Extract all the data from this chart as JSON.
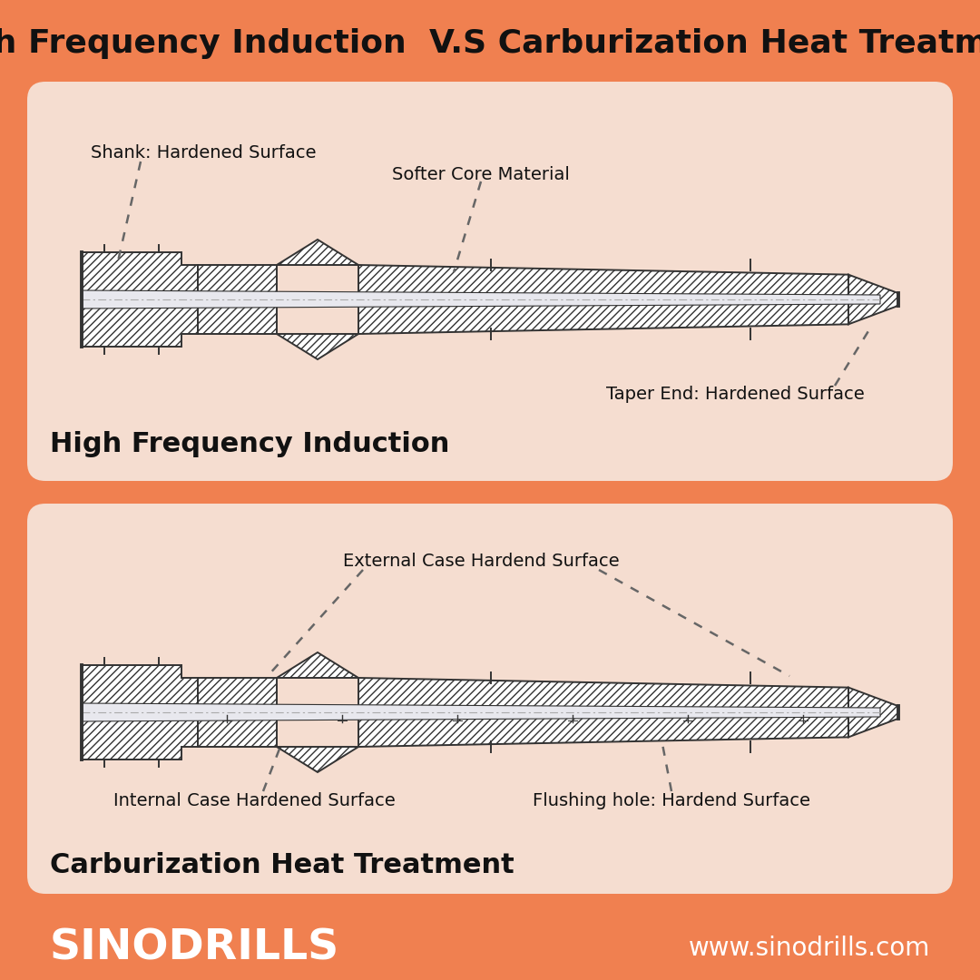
{
  "title": "High Frequency Induction  V.S Carburization Heat Treatment",
  "bg_color": "#F08050",
  "panel_color": "#F5DDD0",
  "title_color": "#111111",
  "panel1_label": "High Frequency Induction",
  "panel2_label": "Carburization Heat Treatment",
  "footer_left": "SINODRILLS",
  "footer_right": "www.sinodrills.com",
  "line_color": "#333333",
  "hatch_color": "#555555",
  "core_color": "#E8E8EE",
  "dot_color": "#666666"
}
